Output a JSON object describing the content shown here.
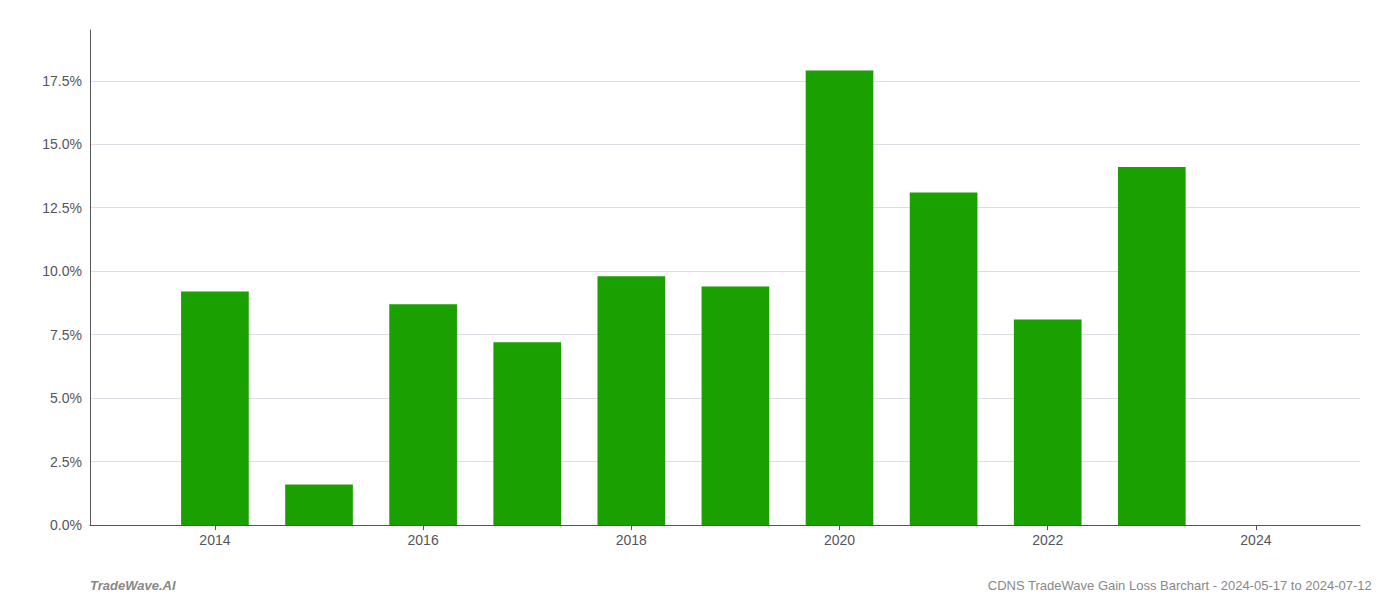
{
  "chart_data": {
    "type": "bar",
    "x": [
      2014,
      2015,
      2016,
      2017,
      2018,
      2019,
      2020,
      2021,
      2022,
      2023
    ],
    "values": [
      0.092,
      0.016,
      0.087,
      0.072,
      0.098,
      0.094,
      0.179,
      0.131,
      0.081,
      0.141
    ],
    "color": "#1aa000",
    "xlim": [
      2012.8,
      2025.0
    ],
    "xticks": [
      2014,
      2016,
      2018,
      2020,
      2022,
      2024
    ],
    "ylim": [
      0.0,
      0.195
    ],
    "yticks": [
      {
        "value": 0.0,
        "label": "0.0%"
      },
      {
        "value": 0.025,
        "label": "2.5%"
      },
      {
        "value": 0.05,
        "label": "5.0%"
      },
      {
        "value": 0.075,
        "label": "7.5%"
      },
      {
        "value": 0.1,
        "label": "10.0%"
      },
      {
        "value": 0.125,
        "label": "12.5%"
      },
      {
        "value": 0.15,
        "label": "15.0%"
      },
      {
        "value": 0.175,
        "label": "17.5%"
      }
    ],
    "grid": true,
    "annotations": [
      "TradeWave.AI",
      "CDNS TradeWave Gain Loss Barchart - 2024-05-17 to 2024-07-12"
    ]
  }
}
